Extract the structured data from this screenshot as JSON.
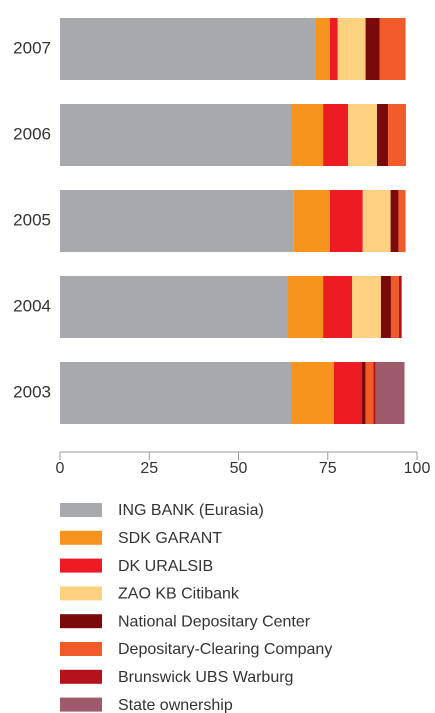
{
  "chart_data": {
    "type": "stacked-bar-horizontal",
    "categories": [
      "2007",
      "2006",
      "2005",
      "2004",
      "2003"
    ],
    "series": [
      {
        "name": "ING BANK (Eurasia)",
        "color": "#a7a9ac",
        "values": [
          71.7,
          64.7,
          65.5,
          63.6,
          64.7
        ]
      },
      {
        "name": "SDK GARANT",
        "color": "#f7941d",
        "values": [
          3.9,
          9.0,
          10.1,
          10.1,
          12.0
        ]
      },
      {
        "name": "DK URALSIB",
        "color": "#ed1c24",
        "values": [
          2.2,
          7.0,
          9.2,
          8.1,
          7.8
        ]
      },
      {
        "name": "ZAO KB Citibank",
        "color": "#fdd17f",
        "values": [
          7.8,
          8.1,
          7.8,
          8.1,
          0
        ]
      },
      {
        "name": "National Depositary Center",
        "color": "#7a0a0a",
        "values": [
          3.9,
          3.1,
          2.2,
          2.8,
          1.1
        ]
      },
      {
        "name": "Depositary-Clearing Company",
        "color": "#f15a29",
        "values": [
          7.3,
          5.0,
          2.0,
          2.2,
          2.2
        ]
      },
      {
        "name": "Brunswick UBS Warburg",
        "color": "#b5121b",
        "values": [
          0,
          0,
          0,
          0.8,
          0.6
        ]
      },
      {
        "name": "State ownership",
        "color": "#9e5a6b",
        "values": [
          0,
          0,
          0,
          0,
          8.1
        ]
      }
    ],
    "xlim": [
      0,
      100
    ],
    "xticks": [
      0,
      25,
      50,
      75,
      100
    ]
  }
}
